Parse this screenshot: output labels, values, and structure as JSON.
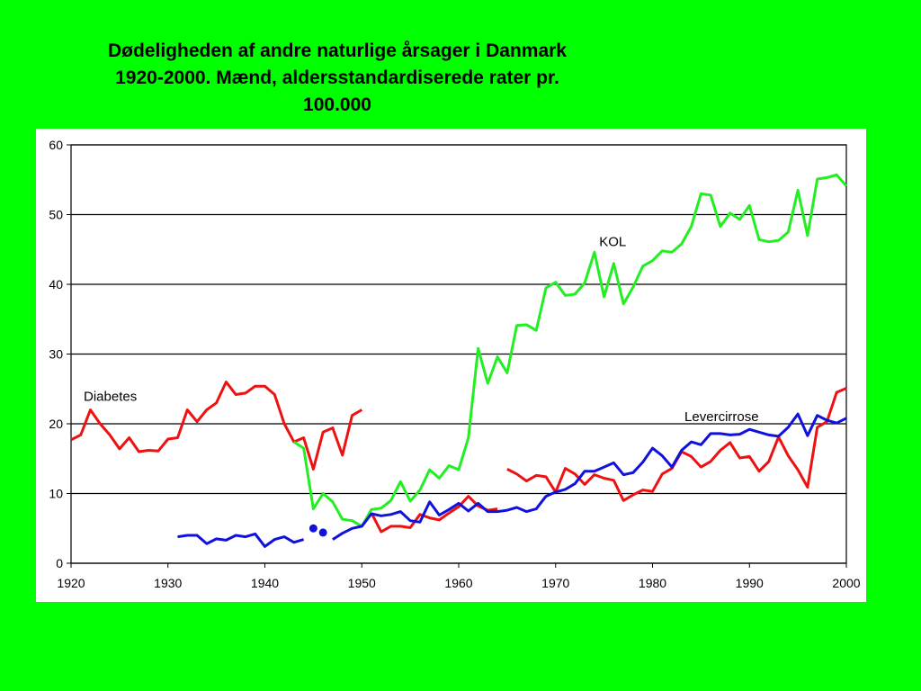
{
  "title": {
    "line1": "Dødeligheden af andre naturlige årsager i Danmark",
    "line2": "1920-2000. Mænd, aldersstandardiserede rater pr.",
    "line3": "100.000"
  },
  "colors": {
    "background": "#00ff00",
    "panel": "#ffffff",
    "diabetes": "#ee1111",
    "kol": "#22ee22",
    "levercirrose": "#1111dd"
  },
  "chart_data": {
    "type": "line",
    "title": "Dødeligheden af andre naturlige årsager i Danmark 1920-2000. Mænd, aldersstandardiserede rater pr. 100.000",
    "xlabel": "",
    "ylabel": "",
    "xlim": [
      1920,
      2000
    ],
    "ylim": [
      0,
      60
    ],
    "x_ticks": [
      1920,
      1930,
      1940,
      1950,
      1960,
      1970,
      1980,
      1990,
      2000
    ],
    "y_ticks": [
      0,
      10,
      20,
      30,
      40,
      50,
      60
    ],
    "grid": "horizontal",
    "series": [
      {
        "name": "Diabetes",
        "color": "#ee1111",
        "segments": [
          [
            [
              1920,
              17.7
            ],
            [
              1921,
              18.4
            ],
            [
              1922,
              22.0
            ],
            [
              1923,
              20.0
            ],
            [
              1924,
              18.4
            ],
            [
              1925,
              16.4
            ],
            [
              1926,
              18.0
            ],
            [
              1927,
              16.0
            ],
            [
              1928,
              16.2
            ],
            [
              1929,
              16.1
            ],
            [
              1930,
              17.8
            ],
            [
              1931,
              18.0
            ],
            [
              1932,
              22.0
            ],
            [
              1933,
              20.3
            ],
            [
              1934,
              22.0
            ],
            [
              1935,
              23.0
            ],
            [
              1936,
              26.0
            ],
            [
              1937,
              24.2
            ],
            [
              1938,
              24.4
            ],
            [
              1939,
              25.4
            ],
            [
              1940,
              25.4
            ],
            [
              1941,
              24.2
            ],
            [
              1942,
              20.0
            ],
            [
              1943,
              17.4
            ],
            [
              1944,
              18.0
            ],
            [
              1945,
              13.5
            ],
            [
              1946,
              18.8
            ],
            [
              1947,
              19.4
            ],
            [
              1948,
              15.5
            ],
            [
              1949,
              21.2
            ],
            [
              1950,
              22.0
            ]
          ],
          [
            [
              1951,
              7.2
            ],
            [
              1952,
              4.5
            ],
            [
              1953,
              5.3
            ],
            [
              1954,
              5.3
            ],
            [
              1955,
              5.1
            ],
            [
              1956,
              7.0
            ],
            [
              1957,
              6.5
            ],
            [
              1958,
              6.2
            ],
            [
              1959,
              7.2
            ],
            [
              1960,
              8.1
            ],
            [
              1961,
              9.6
            ],
            [
              1962,
              8.2
            ],
            [
              1963,
              7.6
            ],
            [
              1964,
              7.8
            ]
          ],
          [
            [
              1965,
              13.5
            ],
            [
              1966,
              12.8
            ],
            [
              1967,
              11.8
            ],
            [
              1968,
              12.6
            ],
            [
              1969,
              12.4
            ],
            [
              1970,
              10.2
            ],
            [
              1971,
              13.6
            ],
            [
              1972,
              12.8
            ],
            [
              1973,
              11.3
            ],
            [
              1974,
              12.7
            ],
            [
              1975,
              12.2
            ],
            [
              1976,
              11.9
            ],
            [
              1977,
              9.0
            ],
            [
              1978,
              9.8
            ],
            [
              1979,
              10.5
            ],
            [
              1980,
              10.3
            ],
            [
              1981,
              12.8
            ],
            [
              1982,
              13.6
            ],
            [
              1983,
              16.0
            ],
            [
              1984,
              15.3
            ],
            [
              1985,
              13.8
            ],
            [
              1986,
              14.6
            ],
            [
              1987,
              16.2
            ],
            [
              1988,
              17.3
            ],
            [
              1989,
              15.1
            ],
            [
              1990,
              15.3
            ],
            [
              1991,
              13.2
            ],
            [
              1992,
              14.6
            ],
            [
              1993,
              18.1
            ],
            [
              1994,
              15.4
            ],
            [
              1995,
              13.4
            ],
            [
              1996,
              10.9
            ],
            [
              1997,
              19.5
            ],
            [
              1998,
              20.3
            ],
            [
              1999,
              24.5
            ],
            [
              2000,
              25.1
            ]
          ]
        ]
      },
      {
        "name": "KOL",
        "color": "#22ee22",
        "segments": [
          [
            [
              1943,
              17.4
            ],
            [
              1944,
              16.5
            ],
            [
              1945,
              7.8
            ],
            [
              1946,
              10.0
            ],
            [
              1947,
              8.8
            ],
            [
              1948,
              6.3
            ],
            [
              1949,
              6.1
            ],
            [
              1950,
              5.3
            ],
            [
              1951,
              7.7
            ],
            [
              1952,
              7.9
            ],
            [
              1953,
              9.0
            ],
            [
              1954,
              11.7
            ],
            [
              1955,
              8.9
            ],
            [
              1956,
              10.5
            ],
            [
              1957,
              13.4
            ],
            [
              1958,
              12.2
            ],
            [
              1959,
              14.0
            ],
            [
              1960,
              13.4
            ],
            [
              1961,
              18.0
            ],
            [
              1962,
              30.8
            ],
            [
              1963,
              25.8
            ],
            [
              1964,
              29.6
            ],
            [
              1965,
              27.3
            ],
            [
              1966,
              34.1
            ],
            [
              1967,
              34.2
            ],
            [
              1968,
              33.4
            ],
            [
              1969,
              39.5
            ],
            [
              1970,
              40.3
            ],
            [
              1971,
              38.4
            ],
            [
              1972,
              38.6
            ],
            [
              1973,
              40.2
            ],
            [
              1974,
              44.6
            ],
            [
              1975,
              38.2
            ],
            [
              1976,
              43.0
            ],
            [
              1977,
              37.2
            ],
            [
              1978,
              39.6
            ],
            [
              1979,
              42.6
            ],
            [
              1980,
              43.4
            ],
            [
              1981,
              44.8
            ],
            [
              1982,
              44.6
            ],
            [
              1983,
              45.8
            ],
            [
              1984,
              48.3
            ],
            [
              1985,
              53.0
            ],
            [
              1986,
              52.8
            ],
            [
              1987,
              48.3
            ],
            [
              1988,
              50.2
            ],
            [
              1989,
              49.3
            ],
            [
              1990,
              51.3
            ],
            [
              1991,
              46.4
            ],
            [
              1992,
              46.1
            ],
            [
              1993,
              46.3
            ],
            [
              1994,
              47.5
            ],
            [
              1995,
              53.5
            ],
            [
              1996,
              47.0
            ],
            [
              1997,
              55.1
            ],
            [
              1998,
              55.3
            ],
            [
              1999,
              55.7
            ],
            [
              2000,
              54.1
            ]
          ]
        ]
      },
      {
        "name": "Levercirrose",
        "color": "#1111dd",
        "segments": [
          [
            [
              1931,
              3.8
            ],
            [
              1932,
              4.0
            ],
            [
              1933,
              4.0
            ],
            [
              1934,
              2.8
            ],
            [
              1935,
              3.5
            ],
            [
              1936,
              3.3
            ],
            [
              1937,
              4.0
            ],
            [
              1938,
              3.8
            ],
            [
              1939,
              4.2
            ],
            [
              1940,
              2.4
            ],
            [
              1941,
              3.4
            ],
            [
              1942,
              3.8
            ],
            [
              1943,
              3.0
            ],
            [
              1944,
              3.4
            ]
          ],
          [
            [
              1947,
              3.4
            ],
            [
              1948,
              4.3
            ],
            [
              1949,
              5.0
            ],
            [
              1950,
              5.3
            ],
            [
              1951,
              7.1
            ],
            [
              1952,
              6.8
            ],
            [
              1953,
              7.0
            ],
            [
              1954,
              7.4
            ],
            [
              1955,
              6.1
            ],
            [
              1956,
              5.9
            ],
            [
              1957,
              8.8
            ],
            [
              1958,
              6.9
            ],
            [
              1959,
              7.7
            ],
            [
              1960,
              8.6
            ],
            [
              1961,
              7.5
            ],
            [
              1962,
              8.6
            ],
            [
              1963,
              7.4
            ],
            [
              1964,
              7.4
            ],
            [
              1965,
              7.6
            ],
            [
              1966,
              8.0
            ],
            [
              1967,
              7.4
            ],
            [
              1968,
              7.8
            ],
            [
              1969,
              9.6
            ],
            [
              1970,
              10.2
            ],
            [
              1971,
              10.6
            ],
            [
              1972,
              11.4
            ],
            [
              1973,
              13.2
            ],
            [
              1974,
              13.2
            ],
            [
              1975,
              13.8
            ],
            [
              1976,
              14.4
            ],
            [
              1977,
              12.7
            ],
            [
              1978,
              13.0
            ],
            [
              1979,
              14.5
            ],
            [
              1980,
              16.5
            ],
            [
              1981,
              15.4
            ],
            [
              1982,
              13.8
            ],
            [
              1983,
              16.2
            ],
            [
              1984,
              17.4
            ],
            [
              1985,
              17.0
            ],
            [
              1986,
              18.6
            ],
            [
              1987,
              18.6
            ],
            [
              1988,
              18.4
            ],
            [
              1989,
              18.5
            ],
            [
              1990,
              19.2
            ],
            [
              1991,
              18.8
            ],
            [
              1992,
              18.4
            ],
            [
              1993,
              18.2
            ],
            [
              1994,
              19.5
            ],
            [
              1995,
              21.4
            ],
            [
              1996,
              18.3
            ],
            [
              1997,
              21.2
            ],
            [
              1998,
              20.5
            ],
            [
              1999,
              20.1
            ],
            [
              2000,
              20.8
            ]
          ]
        ],
        "points": [
          [
            1945,
            5.0
          ],
          [
            1946,
            4.4
          ]
        ]
      }
    ],
    "annotations": [
      {
        "text": "Diabetes",
        "x": 1921.3,
        "y": 23.3
      },
      {
        "text": "KOL",
        "x": 1974.5,
        "y": 45.5
      },
      {
        "text": "Levercirrose",
        "x": 1983.3,
        "y": 20.4
      }
    ]
  }
}
